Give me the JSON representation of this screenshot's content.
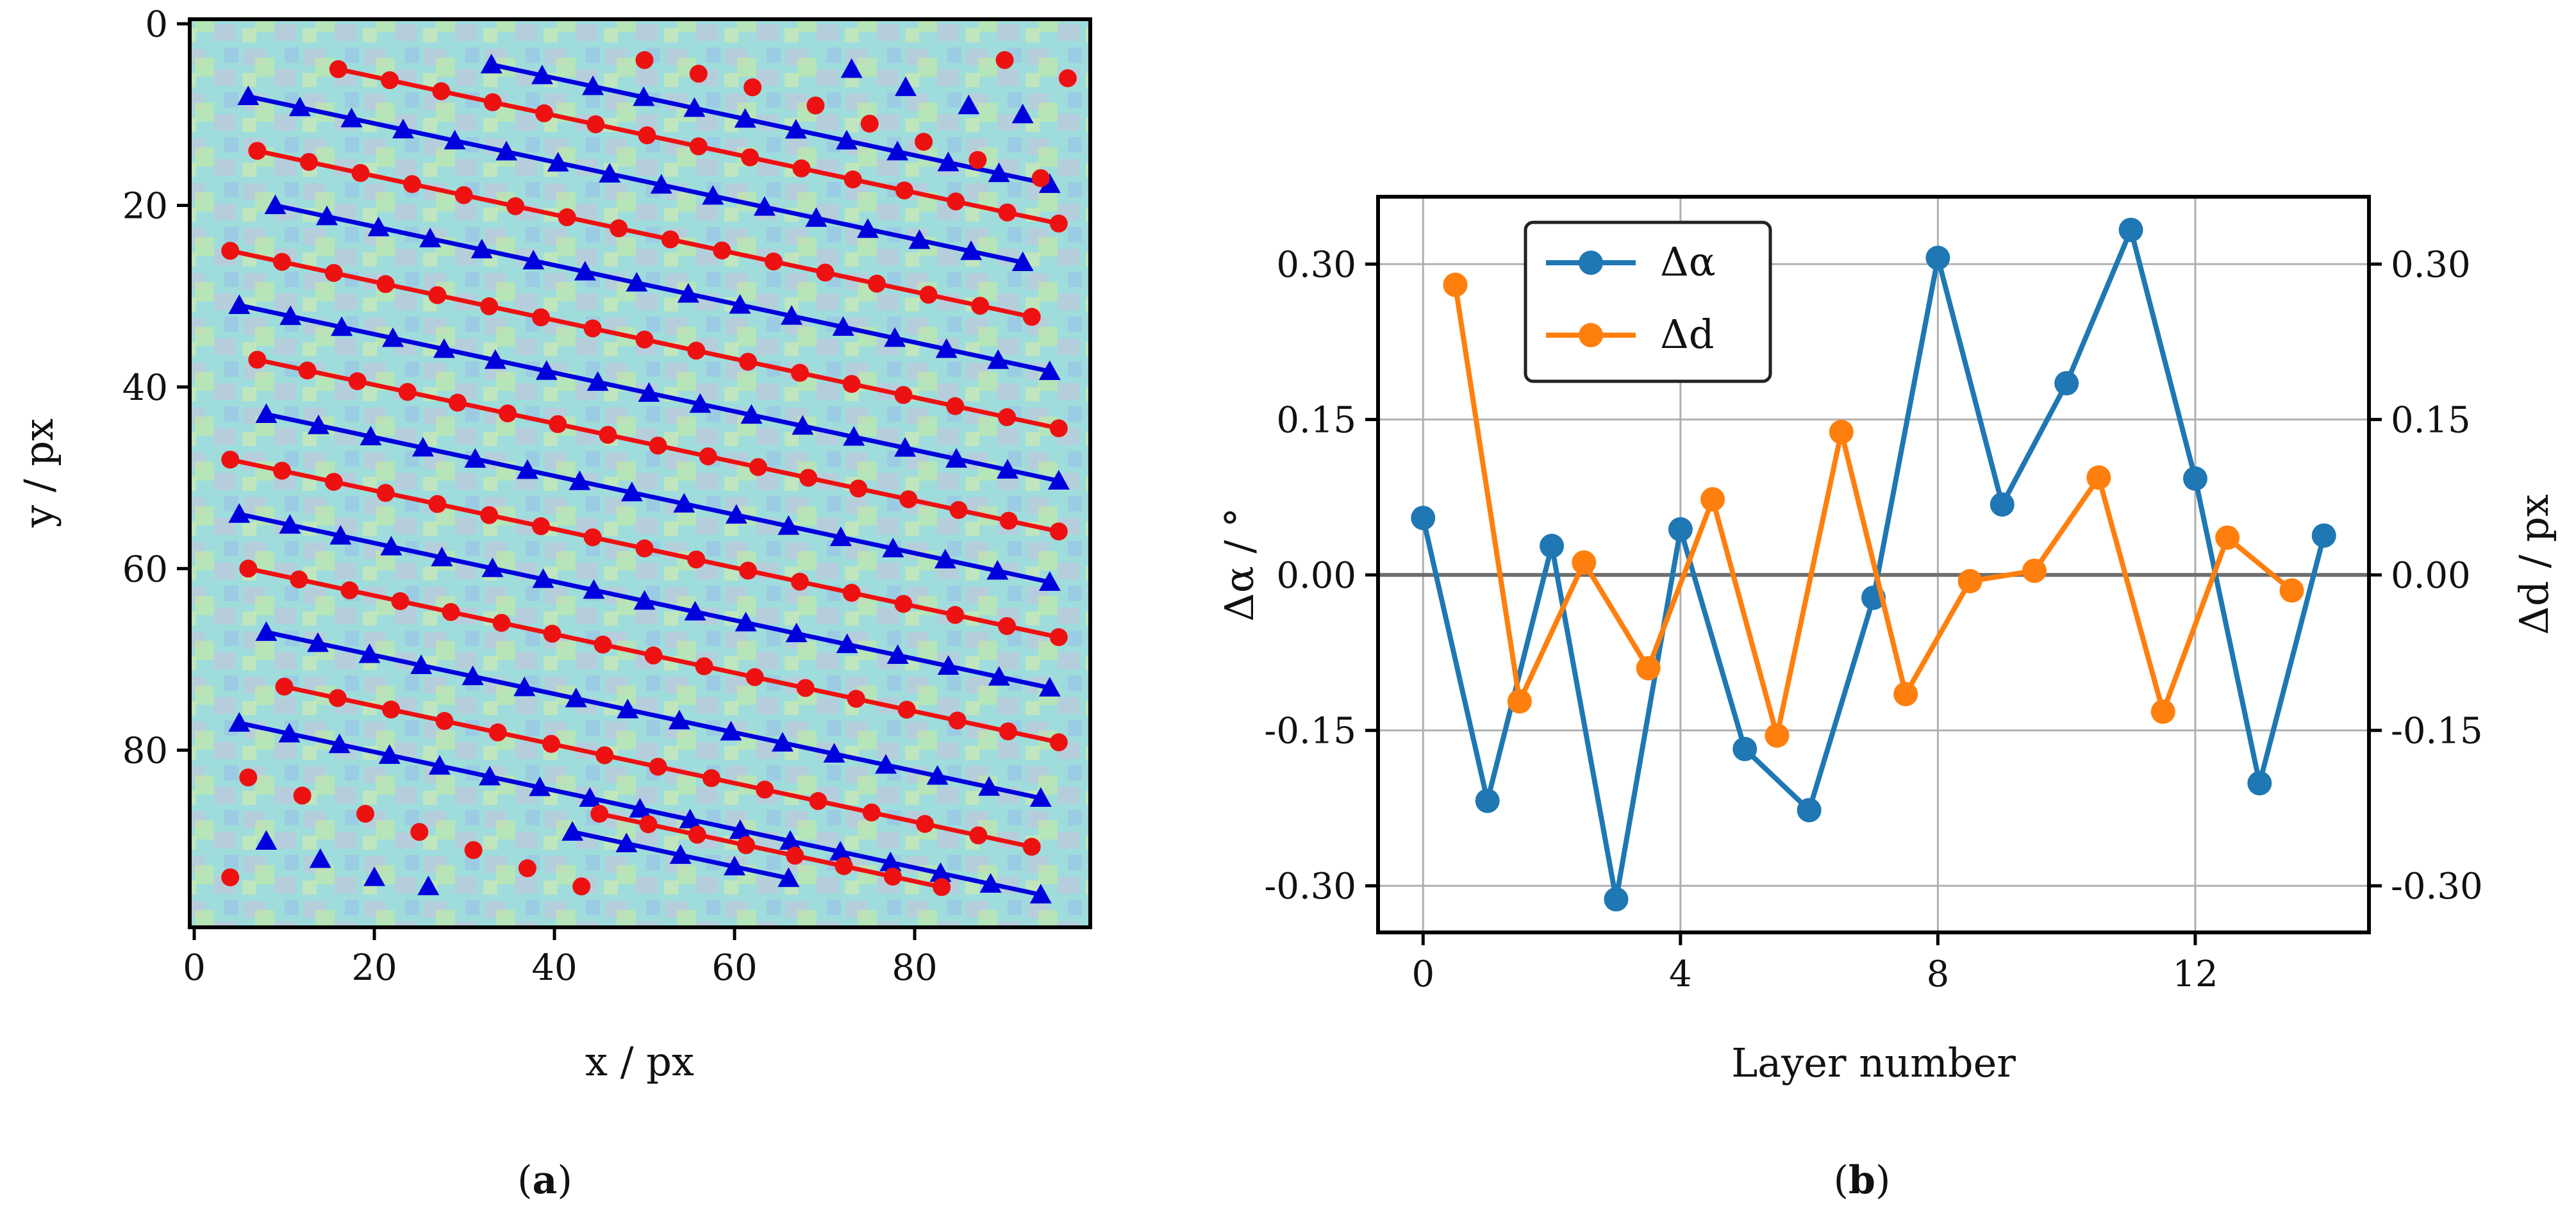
{
  "panels": {
    "a": {
      "label_open": "(",
      "label_letter": "a",
      "label_close": ")"
    },
    "b": {
      "label_open": "(",
      "label_letter": "b",
      "label_close": ")"
    }
  },
  "chart_data": [
    {
      "type": "scatter",
      "panel": "a",
      "title": "",
      "xlabel": "x / px",
      "ylabel": "y / px",
      "xlim": [
        -0.5,
        99.5
      ],
      "ylim": [
        99.5,
        -0.5
      ],
      "y_inverted": true,
      "xticks": [
        0,
        20,
        40,
        60,
        80
      ],
      "yticks": [
        0,
        20,
        40,
        60,
        80
      ],
      "grid": false,
      "background": "atomic-resolution image (false-color)",
      "colors": {
        "blue_layers": "#0000dd",
        "red_layers": "#ee1111"
      },
      "layer_slope": 0.2125,
      "series": [
        {
          "color": "blue",
          "marker": "triangle",
          "line": true,
          "x_start": 33,
          "x_end": 95,
          "y_start": 4.5,
          "points": 12
        },
        {
          "color": "red",
          "marker": "circle",
          "line": true,
          "x_start": 16,
          "x_end": 96,
          "y_start": 5,
          "points": 15
        },
        {
          "color": "blue",
          "marker": "triangle",
          "line": true,
          "x_start": 6,
          "x_end": 92,
          "y_start": 8,
          "points": 16
        },
        {
          "color": "red",
          "marker": "circle",
          "line": true,
          "x_start": 7,
          "x_end": 93,
          "y_start": 14,
          "points": 16
        },
        {
          "color": "blue",
          "marker": "triangle",
          "line": true,
          "x_start": 9,
          "x_end": 95,
          "y_start": 20,
          "points": 16
        },
        {
          "color": "red",
          "marker": "circle",
          "line": true,
          "x_start": 4,
          "x_end": 96,
          "y_start": 25,
          "points": 17
        },
        {
          "color": "blue",
          "marker": "triangle",
          "line": true,
          "x_start": 5,
          "x_end": 96,
          "y_start": 31,
          "points": 17
        },
        {
          "color": "red",
          "marker": "circle",
          "line": true,
          "x_start": 7,
          "x_end": 96,
          "y_start": 37,
          "points": 17
        },
        {
          "color": "blue",
          "marker": "triangle",
          "line": true,
          "x_start": 8,
          "x_end": 95,
          "y_start": 43,
          "points": 16
        },
        {
          "color": "red",
          "marker": "circle",
          "line": true,
          "x_start": 4,
          "x_end": 96,
          "y_start": 48,
          "points": 17
        },
        {
          "color": "blue",
          "marker": "triangle",
          "line": true,
          "x_start": 5,
          "x_end": 95,
          "y_start": 54,
          "points": 17
        },
        {
          "color": "red",
          "marker": "circle",
          "line": true,
          "x_start": 6,
          "x_end": 96,
          "y_start": 60,
          "points": 17
        },
        {
          "color": "blue",
          "marker": "triangle",
          "line": true,
          "x_start": 8,
          "x_end": 94,
          "y_start": 67,
          "points": 16
        },
        {
          "color": "red",
          "marker": "circle",
          "line": true,
          "x_start": 10,
          "x_end": 93,
          "y_start": 73,
          "points": 15
        },
        {
          "color": "blue",
          "marker": "triangle",
          "line": true,
          "x_start": 5,
          "x_end": 94,
          "y_start": 77,
          "points": 17
        },
        {
          "color": "red",
          "marker": "circle",
          "line": true,
          "x_start": 45,
          "x_end": 83,
          "y_start": 87,
          "points": 8
        },
        {
          "color": "blue",
          "marker": "triangle",
          "line": true,
          "x_start": 42,
          "x_end": 66,
          "y_start": 89,
          "points": 5
        }
      ],
      "unconnected_points": [
        {
          "color": "red",
          "marker": "circle",
          "x": 50,
          "y": 4
        },
        {
          "color": "red",
          "marker": "circle",
          "x": 56,
          "y": 5.5
        },
        {
          "color": "red",
          "marker": "circle",
          "x": 62,
          "y": 7
        },
        {
          "color": "red",
          "marker": "circle",
          "x": 69,
          "y": 9
        },
        {
          "color": "red",
          "marker": "circle",
          "x": 75,
          "y": 11
        },
        {
          "color": "red",
          "marker": "circle",
          "x": 81,
          "y": 13
        },
        {
          "color": "red",
          "marker": "circle",
          "x": 87,
          "y": 15
        },
        {
          "color": "red",
          "marker": "circle",
          "x": 90,
          "y": 4
        },
        {
          "color": "red",
          "marker": "circle",
          "x": 97,
          "y": 6
        },
        {
          "color": "red",
          "marker": "circle",
          "x": 94,
          "y": 17
        },
        {
          "color": "blue",
          "marker": "triangle",
          "x": 73,
          "y": 5
        },
        {
          "color": "blue",
          "marker": "triangle",
          "x": 79,
          "y": 7
        },
        {
          "color": "blue",
          "marker": "triangle",
          "x": 86,
          "y": 9
        },
        {
          "color": "blue",
          "marker": "triangle",
          "x": 92,
          "y": 10
        },
        {
          "color": "red",
          "marker": "circle",
          "x": 6,
          "y": 83
        },
        {
          "color": "red",
          "marker": "circle",
          "x": 12,
          "y": 85
        },
        {
          "color": "red",
          "marker": "circle",
          "x": 19,
          "y": 87
        },
        {
          "color": "red",
          "marker": "circle",
          "x": 25,
          "y": 89
        },
        {
          "color": "red",
          "marker": "circle",
          "x": 31,
          "y": 91
        },
        {
          "color": "red",
          "marker": "circle",
          "x": 37,
          "y": 93
        },
        {
          "color": "red",
          "marker": "circle",
          "x": 43,
          "y": 95
        },
        {
          "color": "red",
          "marker": "circle",
          "x": 4,
          "y": 94
        },
        {
          "color": "blue",
          "marker": "triangle",
          "x": 8,
          "y": 90
        },
        {
          "color": "blue",
          "marker": "triangle",
          "x": 14,
          "y": 92
        },
        {
          "color": "blue",
          "marker": "triangle",
          "x": 20,
          "y": 94
        },
        {
          "color": "blue",
          "marker": "triangle",
          "x": 26,
          "y": 95
        }
      ]
    },
    {
      "type": "line",
      "panel": "b",
      "title": "",
      "xlabel": "Layer number",
      "ylabel_left": "Δα / °",
      "ylabel_right": "Δd / px",
      "xlim": [
        -0.7,
        14.7
      ],
      "ylim": [
        -0.345,
        0.365
      ],
      "xticks": [
        0,
        4,
        8,
        12
      ],
      "yticks": [
        -0.3,
        -0.15,
        0.0,
        0.15,
        0.3
      ],
      "ytick_labels": [
        "-0.30",
        "-0.15",
        "0.00",
        "0.15",
        "0.30"
      ],
      "grid": true,
      "zero_line": true,
      "legend": "upper left",
      "series": [
        {
          "name": "Δα",
          "color": "#1f77b4",
          "x": [
            0,
            1,
            2,
            3,
            4,
            5,
            6,
            7,
            8,
            9,
            10,
            11,
            12,
            13,
            14
          ],
          "y": [
            0.055,
            -0.218,
            0.028,
            -0.313,
            0.044,
            -0.168,
            -0.227,
            -0.022,
            0.306,
            0.068,
            0.185,
            0.333,
            0.093,
            -0.201,
            0.038
          ]
        },
        {
          "name": "Δd",
          "color": "#ff7f0e",
          "x": [
            0.5,
            1.5,
            2.5,
            3.5,
            4.5,
            5.5,
            6.5,
            7.5,
            8.5,
            9.5,
            10.5,
            11.5,
            12.5,
            13.5
          ],
          "y": [
            0.28,
            -0.122,
            0.012,
            -0.09,
            0.073,
            -0.155,
            0.138,
            -0.115,
            -0.006,
            0.004,
            0.094,
            -0.132,
            0.036,
            -0.015
          ]
        }
      ]
    }
  ]
}
